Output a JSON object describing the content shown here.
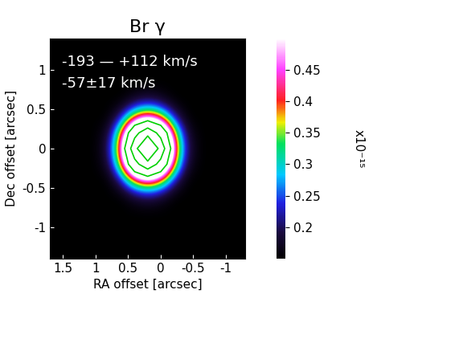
{
  "chart_data": {
    "type": "heatmap",
    "title": "Br γ",
    "xlabel": "RA offset [arcsec]",
    "ylabel": "Dec offset [arcsec]",
    "annotations": [
      "-193 — +112 km/s",
      "-57±17 km/s"
    ],
    "xlim": [
      1.7,
      -1.3
    ],
    "ylim": [
      -1.4,
      1.4
    ],
    "xticks": [
      1.5,
      1,
      0.5,
      0,
      -0.5,
      -1
    ],
    "yticks": [
      -1,
      -0.5,
      0,
      0.5,
      1
    ],
    "x": [
      1.6,
      1.4,
      1.2,
      1.0,
      0.8,
      0.6,
      0.4,
      0.2,
      0.0,
      -0.2,
      -0.4,
      -0.6,
      -0.8,
      -1.0,
      -1.2
    ],
    "y": [
      -1.4,
      -1.2,
      -1.0,
      -0.8,
      -0.6,
      -0.4,
      -0.2,
      0.0,
      0.2,
      0.4,
      0.6,
      0.8,
      1.0,
      1.2,
      1.4
    ],
    "cells": [
      [
        0.15,
        0.15,
        0.15,
        0.15,
        0.15,
        0.15,
        0.15,
        0.15,
        0.15,
        0.15,
        0.15,
        0.15,
        0.15,
        0.15,
        0.15
      ],
      [
        0.15,
        0.15,
        0.15,
        0.15,
        0.15,
        0.15,
        0.15,
        0.15,
        0.15,
        0.15,
        0.15,
        0.15,
        0.15,
        0.15,
        0.15
      ],
      [
        0.15,
        0.15,
        0.15,
        0.15,
        0.15,
        0.15,
        0.15,
        0.15,
        0.15,
        0.15,
        0.15,
        0.15,
        0.15,
        0.15,
        0.15
      ],
      [
        0.15,
        0.15,
        0.15,
        0.15,
        0.15,
        0.15,
        0.15,
        0.15,
        0.15,
        0.15,
        0.15,
        0.15,
        0.15,
        0.15,
        0.15
      ],
      [
        0.15,
        0.15,
        0.15,
        0.15,
        0.15,
        0.15,
        0.18,
        0.2,
        0.18,
        0.15,
        0.15,
        0.15,
        0.15,
        0.15,
        0.15
      ],
      [
        0.15,
        0.15,
        0.15,
        0.15,
        0.15,
        0.22,
        0.38,
        0.45,
        0.38,
        0.22,
        0.15,
        0.15,
        0.15,
        0.15,
        0.15
      ],
      [
        0.15,
        0.15,
        0.15,
        0.15,
        0.18,
        0.38,
        0.8,
        1.1,
        0.8,
        0.38,
        0.18,
        0.15,
        0.15,
        0.15,
        0.15
      ],
      [
        0.15,
        0.15,
        0.15,
        0.15,
        0.2,
        0.45,
        1.1,
        1.6,
        1.1,
        0.45,
        0.2,
        0.15,
        0.15,
        0.15,
        0.15
      ],
      [
        0.15,
        0.15,
        0.15,
        0.15,
        0.18,
        0.38,
        0.8,
        1.1,
        0.8,
        0.38,
        0.18,
        0.15,
        0.15,
        0.15,
        0.15
      ],
      [
        0.15,
        0.15,
        0.15,
        0.15,
        0.15,
        0.22,
        0.38,
        0.45,
        0.38,
        0.22,
        0.15,
        0.15,
        0.15,
        0.15,
        0.15
      ],
      [
        0.15,
        0.15,
        0.15,
        0.15,
        0.15,
        0.15,
        0.18,
        0.2,
        0.18,
        0.15,
        0.15,
        0.15,
        0.15,
        0.15,
        0.15
      ],
      [
        0.15,
        0.15,
        0.15,
        0.15,
        0.15,
        0.15,
        0.15,
        0.15,
        0.15,
        0.15,
        0.15,
        0.15,
        0.15,
        0.15,
        0.15
      ],
      [
        0.15,
        0.15,
        0.15,
        0.15,
        0.15,
        0.15,
        0.15,
        0.15,
        0.15,
        0.15,
        0.15,
        0.15,
        0.15,
        0.15,
        0.15
      ],
      [
        0.15,
        0.15,
        0.15,
        0.15,
        0.15,
        0.15,
        0.15,
        0.15,
        0.15,
        0.15,
        0.15,
        0.15,
        0.15,
        0.15,
        0.15
      ],
      [
        0.15,
        0.15,
        0.15,
        0.15,
        0.15,
        0.15,
        0.15,
        0.15,
        0.15,
        0.15,
        0.15,
        0.15,
        0.15,
        0.15,
        0.15
      ]
    ],
    "contour_levels": [
      0.6,
      0.9,
      1.2
    ],
    "colorbar": {
      "range": [
        0.15,
        0.5
      ],
      "ticks": [
        0.2,
        0.25,
        0.3,
        0.35,
        0.4,
        0.45
      ],
      "label": "x10⁻¹⁵"
    }
  }
}
